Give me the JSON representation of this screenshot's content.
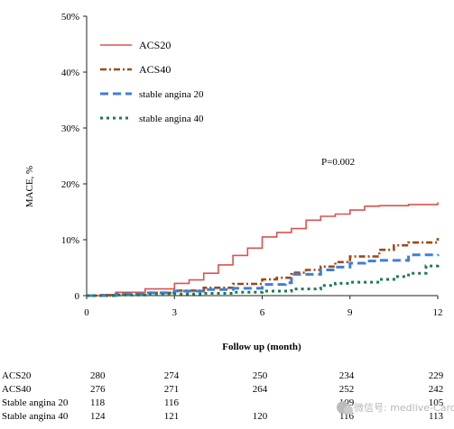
{
  "chart_data": {
    "type": "line",
    "title": "",
    "xlabel": "Follow up (month)",
    "ylabel": "MACE, %",
    "xlim": [
      0,
      12
    ],
    "ylim": [
      0,
      50
    ],
    "xticks": [
      0,
      3,
      6,
      9,
      12
    ],
    "yticks": [
      0,
      10,
      20,
      30,
      40,
      50
    ],
    "xtick_labels": [
      "0",
      "3",
      "6",
      "9",
      "12"
    ],
    "ytick_labels": [
      "0",
      "10%",
      "20%",
      "30%",
      "40%",
      "50%"
    ],
    "legend_position": "top-left",
    "annotation": "P=0.002",
    "series": [
      {
        "name": "ACS20",
        "color": "#d9534f",
        "style": "solid",
        "points": [
          [
            0,
            0
          ],
          [
            0.5,
            0.2
          ],
          [
            1,
            0.6
          ],
          [
            2,
            1.2
          ],
          [
            3,
            2.2
          ],
          [
            3.5,
            2.8
          ],
          [
            4,
            4.0
          ],
          [
            4.5,
            5.5
          ],
          [
            5,
            7.2
          ],
          [
            5.5,
            8.5
          ],
          [
            6,
            10.5
          ],
          [
            6.5,
            11.3
          ],
          [
            7,
            12.0
          ],
          [
            7.5,
            13.5
          ],
          [
            8,
            14.2
          ],
          [
            8.5,
            14.6
          ],
          [
            9,
            15.3
          ],
          [
            9.5,
            16.0
          ],
          [
            10,
            16.1
          ],
          [
            11,
            16.3
          ],
          [
            12,
            16.7
          ]
        ]
      },
      {
        "name": "ACS40",
        "color": "#9c4a18",
        "style": "dashdot",
        "points": [
          [
            0,
            0
          ],
          [
            1,
            0.2
          ],
          [
            2,
            0.5
          ],
          [
            3,
            0.9
          ],
          [
            4,
            1.4
          ],
          [
            5,
            2.1
          ],
          [
            6,
            2.9
          ],
          [
            6.5,
            3.2
          ],
          [
            7,
            4.1
          ],
          [
            7.5,
            4.6
          ],
          [
            8,
            5.2
          ],
          [
            8.5,
            6.0
          ],
          [
            9,
            7.0
          ],
          [
            10,
            8.2
          ],
          [
            10.5,
            9.0
          ],
          [
            11,
            9.5
          ],
          [
            12,
            10.3
          ]
        ]
      },
      {
        "name": "stable angina 20",
        "color": "#3f7fd6",
        "style": "dashed",
        "points": [
          [
            0,
            0
          ],
          [
            1,
            0.3
          ],
          [
            2,
            0.5
          ],
          [
            3,
            0.8
          ],
          [
            4,
            1.1
          ],
          [
            5,
            1.3
          ],
          [
            6,
            2.0
          ],
          [
            6.8,
            2.3
          ],
          [
            7,
            3.8
          ],
          [
            8,
            4.6
          ],
          [
            8.5,
            5.1
          ],
          [
            9,
            5.8
          ],
          [
            9.5,
            6.2
          ],
          [
            10,
            6.3
          ],
          [
            11,
            7.3
          ],
          [
            12,
            7.4
          ]
        ]
      },
      {
        "name": "stable angina 40",
        "color": "#1e7a50",
        "style": "dotted",
        "points": [
          [
            0,
            0
          ],
          [
            1,
            0.1
          ],
          [
            2,
            0.2
          ],
          [
            3,
            0.3
          ],
          [
            4,
            0.4
          ],
          [
            5,
            0.6
          ],
          [
            6,
            0.8
          ],
          [
            7,
            1.2
          ],
          [
            8,
            1.8
          ],
          [
            8.5,
            2.2
          ],
          [
            9,
            2.4
          ],
          [
            10,
            2.9
          ],
          [
            10.5,
            3.4
          ],
          [
            11,
            4.0
          ],
          [
            11.6,
            5.3
          ],
          [
            12,
            5.5
          ]
        ]
      }
    ],
    "risk_table": {
      "rows": [
        {
          "label": "ACS20",
          "values": [
            "280",
            "274",
            "250",
            "234",
            "229"
          ]
        },
        {
          "label": "ACS40",
          "values": [
            "276",
            "271",
            "264",
            "252",
            "242"
          ]
        },
        {
          "label": "Stable angina 20",
          "values": [
            "118",
            "116",
            "",
            "109",
            "105"
          ]
        },
        {
          "label": "Stable angina 40",
          "values": [
            "124",
            "121",
            "120",
            "116",
            "113"
          ]
        }
      ]
    }
  },
  "watermark": {
    "text": "微信号: medlive-Cardiolo"
  }
}
